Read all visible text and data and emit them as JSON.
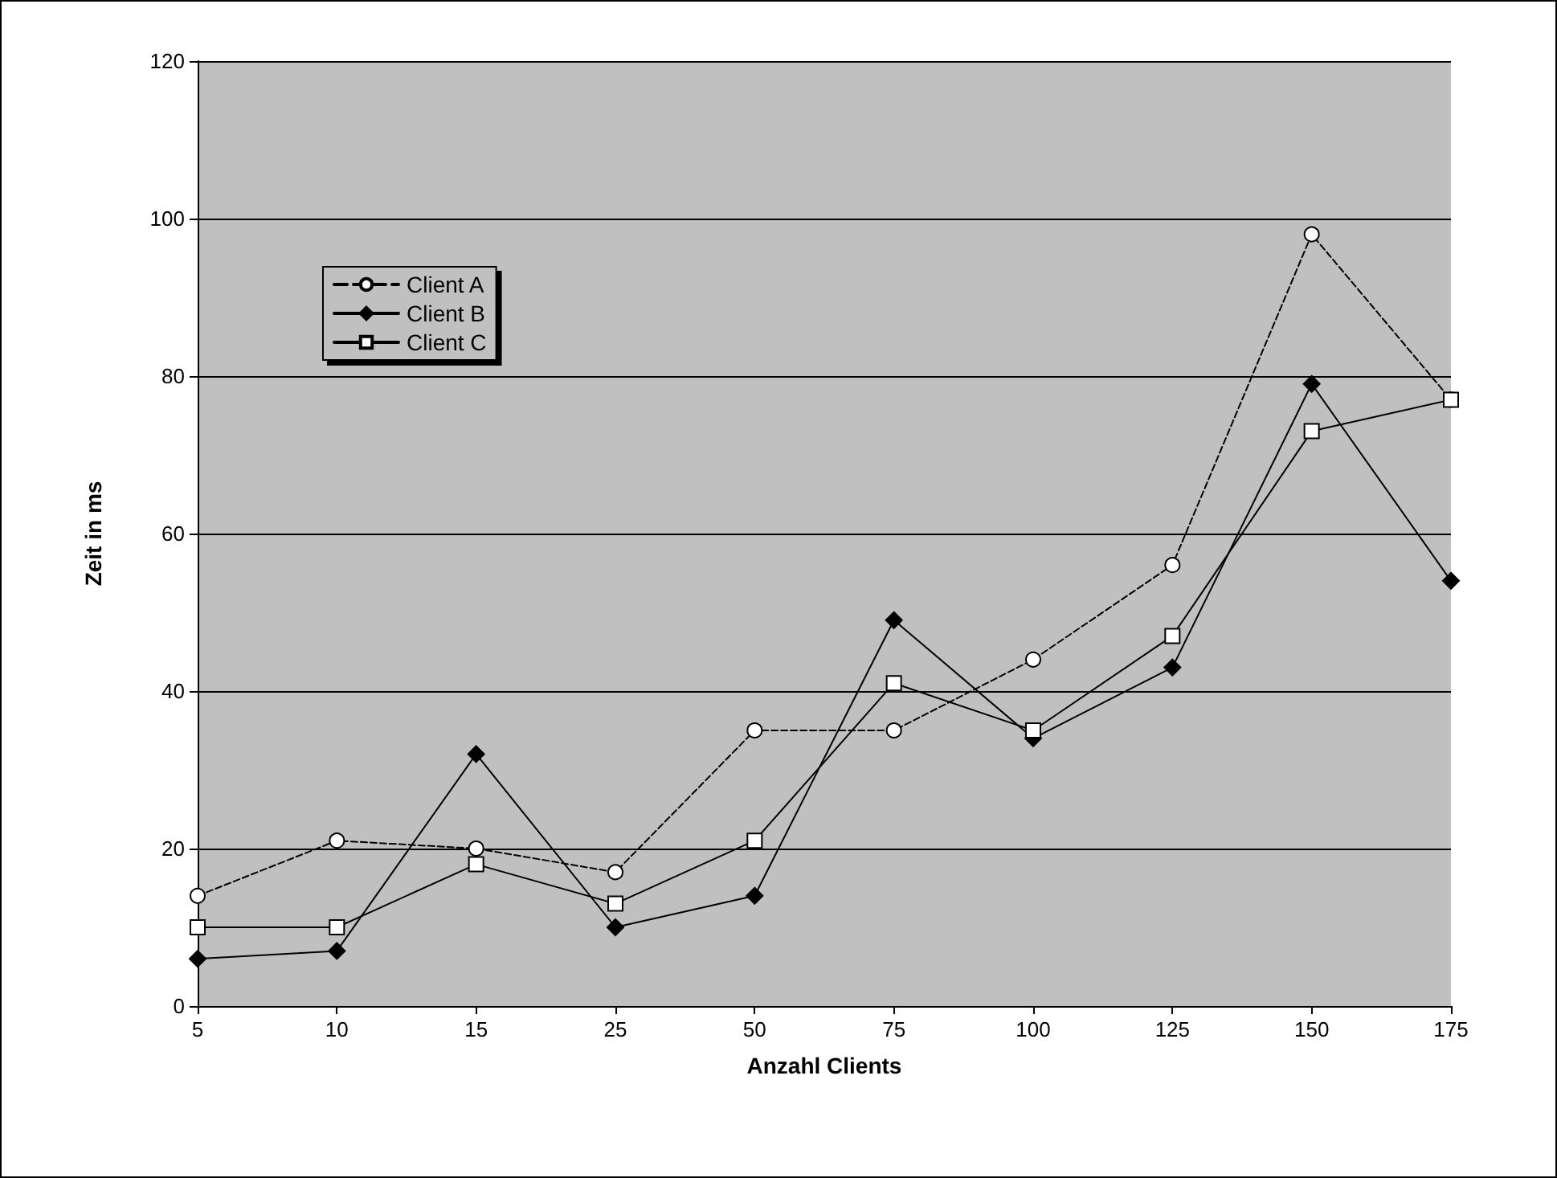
{
  "chart_data": {
    "type": "line",
    "xlabel": "Anzahl Clients",
    "ylabel": "Zeit in ms",
    "categories": [
      "5",
      "10",
      "15",
      "25",
      "50",
      "75",
      "100",
      "125",
      "150",
      "175"
    ],
    "series": [
      {
        "name": "Client A",
        "color": "#000000",
        "marker": "circle",
        "line_style": "dashed",
        "values": [
          14,
          21,
          20,
          17,
          35,
          35,
          44,
          56,
          98,
          77
        ]
      },
      {
        "name": "Client B",
        "color": "#000000",
        "marker": "diamond",
        "line_style": "solid",
        "values": [
          6,
          7,
          32,
          10,
          14,
          49,
          34,
          43,
          79,
          54
        ]
      },
      {
        "name": "Client C",
        "color": "#000000",
        "marker": "square",
        "line_style": "solid",
        "values": [
          10,
          10,
          18,
          13,
          21,
          41,
          35,
          47,
          73,
          77
        ]
      }
    ],
    "ylim": [
      0,
      120
    ],
    "yticks": [
      0,
      20,
      40,
      60,
      80,
      100,
      120
    ],
    "grid": "y",
    "legend": "top left"
  }
}
